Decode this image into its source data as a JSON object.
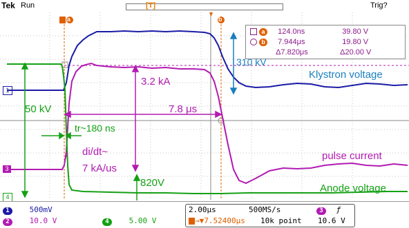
{
  "header": {
    "brand": "Tek",
    "status": "Run",
    "trigger_status": "Trig?",
    "trigger_marker": "T"
  },
  "cursors": {
    "a_label": "a",
    "b_label": "b",
    "readout": [
      {
        "marker": "a",
        "time": "124.0ns",
        "value": "39.80 V"
      },
      {
        "marker": "b",
        "time": "7.944μs",
        "value": "19.80 V"
      },
      {
        "marker": "",
        "time": "Δ7.820μs",
        "value": "Δ20.00 V"
      }
    ]
  },
  "annotations": {
    "klystron_amp": "310 kV",
    "klystron_label": "Klystron voltage",
    "current_amp": "3.2 kA",
    "pulse_width": "7.8 μs",
    "anode_amp": "50 kV",
    "rise_time": "tr~180 ns",
    "didt_line1": "di/dt~",
    "didt_line2": "7 kA/us",
    "current_label": "pulse current",
    "anode_drop": "820V",
    "anode_label": "Anode voltage"
  },
  "channel_markers": [
    "1",
    "3",
    "4"
  ],
  "bottom": {
    "ch1_scale": "500mV",
    "ch2_scale": "10.0 V",
    "ch4_scale": "5.00 V",
    "timebase": "2.00μs",
    "sample_rate": "500MS/s",
    "trig_channel": "3",
    "trig_slope": "ƒ",
    "trig_pos": "→▼7.52400μs",
    "record_length": "10k point",
    "trig_level": "10.6 V"
  },
  "colors": {
    "ch1": "#1a1aa6",
    "ch3": "#b21ab2",
    "ch4": "#14a014",
    "grid": "#bbbbbb",
    "cursor": "#e06000",
    "annotation_blue": "#1a7fbf"
  }
}
